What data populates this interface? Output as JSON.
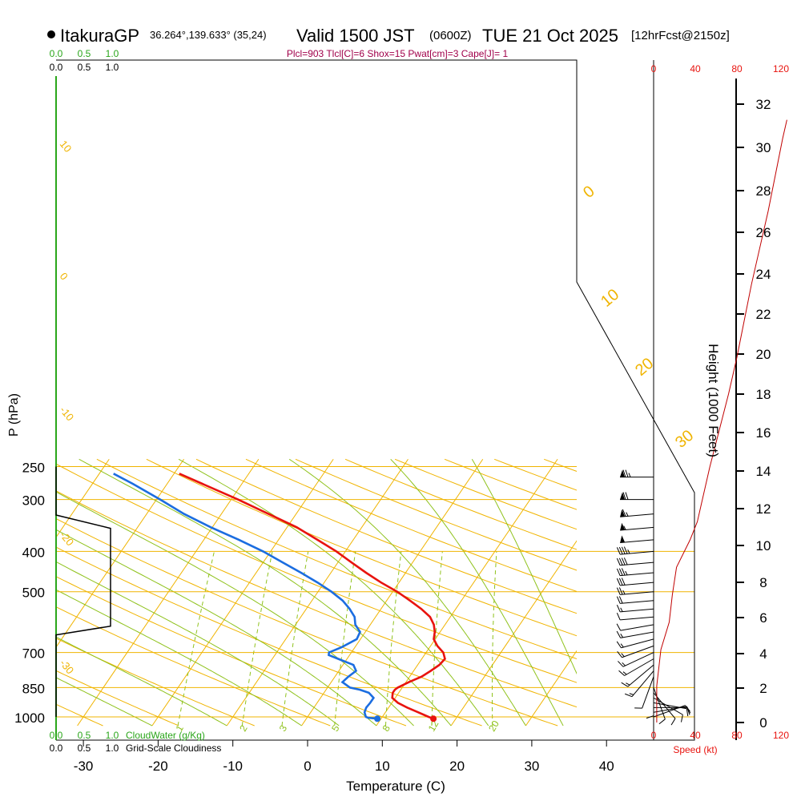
{
  "header": {
    "station": "ItakuraGP",
    "coords": "36.264°,139.633° (35,24)",
    "valid": "Valid 1500 JST",
    "zulu": "(0600Z)",
    "date": "TUE 21 Oct 2025",
    "forecast": "[12hrFcst@2150z]",
    "indices": "Plcl=903 Tlcl[C]=6 Shox=15 Pwat[cm]=3 Cape[J]= 1"
  },
  "colors": {
    "temp": "#e8130e",
    "dewpoint": "#1b6de0",
    "isotherm": "#f0b400",
    "dry_adiabat": "#f0b400",
    "moist_adiabat": "#8fc21c",
    "mixing": "#8fc21c",
    "cloud": "#2aa61a",
    "speed": "#c00000",
    "title_indices": "#a0004a"
  },
  "chart_data": {
    "type": "skewt",
    "title": "Valid 1500 JST (0600Z) TUE 21 Oct 2025",
    "xlabel": "Temperature (C)",
    "ylabel": "P (hPa)",
    "right_label": "Height (1000 Feet)",
    "x_ticks": [
      -30,
      -20,
      -10,
      0,
      10,
      20,
      30,
      40
    ],
    "x_tick_labels": [
      "-30",
      "-20",
      "-10",
      "0",
      "10",
      "20",
      "30",
      "40"
    ],
    "p_levels": [
      1000,
      850,
      700,
      500,
      400,
      300,
      250
    ],
    "p_labels": [
      "1000",
      "850",
      "700",
      "500",
      "400",
      "300",
      "250"
    ],
    "height_ticks": [
      0,
      2,
      4,
      6,
      8,
      10,
      12,
      14,
      16,
      18,
      20,
      22,
      24,
      26,
      28,
      30,
      32
    ],
    "height_labels": [
      "0",
      "2",
      "4",
      "6",
      "8",
      "10",
      "12",
      "14",
      "16",
      "18",
      "20",
      "22",
      "24",
      "26",
      "28",
      "30",
      "32"
    ],
    "speed_ticks": [
      0,
      40,
      80,
      120
    ],
    "speed_labels": [
      "0",
      "40",
      "80",
      "120"
    ],
    "speed_label": "Speed (kt)",
    "cloud_ticks": [
      "0.0",
      "0.5",
      "1.0"
    ],
    "cloud_legend": "CloudWater (g/Kg)",
    "cloudiness_ticks": [
      "0.0",
      "0.5",
      "1.0"
    ],
    "cloudiness_legend": "Grid-Scale Cloudiness",
    "isotherm_labels": [
      "10",
      "0",
      "-10",
      "-20",
      "-30"
    ],
    "dry_labels": [
      "0",
      "10",
      "20",
      "30"
    ],
    "mixing_labels": [
      "1",
      "2",
      "3",
      "5",
      "8",
      "12",
      "20"
    ],
    "temperature": [
      {
        "p": 1010,
        "t": 17.0
      },
      {
        "p": 1000,
        "t": 16.2
      },
      {
        "p": 975,
        "t": 14.4
      },
      {
        "p": 950,
        "t": 12.5
      },
      {
        "p": 925,
        "t": 10.8
      },
      {
        "p": 900,
        "t": 9.6
      },
      {
        "p": 875,
        "t": 9.2
      },
      {
        "p": 860,
        "t": 9.2
      },
      {
        "p": 850,
        "t": 9.4
      },
      {
        "p": 825,
        "t": 10.4
      },
      {
        "p": 800,
        "t": 11.6
      },
      {
        "p": 775,
        "t": 12.3
      },
      {
        "p": 750,
        "t": 12.9
      },
      {
        "p": 725,
        "t": 13.1
      },
      {
        "p": 700,
        "t": 12.3
      },
      {
        "p": 675,
        "t": 10.9
      },
      {
        "p": 650,
        "t": 9.8
      },
      {
        "p": 625,
        "t": 9.3
      },
      {
        "p": 600,
        "t": 8.5
      },
      {
        "p": 575,
        "t": 7.3
      },
      {
        "p": 550,
        "t": 5.4
      },
      {
        "p": 525,
        "t": 3.1
      },
      {
        "p": 500,
        "t": 0.6
      },
      {
        "p": 475,
        "t": -2.4
      },
      {
        "p": 450,
        "t": -5.3
      },
      {
        "p": 425,
        "t": -8.2
      },
      {
        "p": 400,
        "t": -11.2
      },
      {
        "p": 375,
        "t": -14.8
      },
      {
        "p": 350,
        "t": -18.7
      },
      {
        "p": 325,
        "t": -23.7
      },
      {
        "p": 300,
        "t": -29.1
      },
      {
        "p": 275,
        "t": -35.3
      },
      {
        "p": 260,
        "t": -39.3
      }
    ],
    "dewpoint": [
      {
        "p": 1010,
        "t": 9.5
      },
      {
        "p": 1005,
        "t": 8.2
      },
      {
        "p": 1000,
        "t": 7.8
      },
      {
        "p": 975,
        "t": 7.2
      },
      {
        "p": 950,
        "t": 7.0
      },
      {
        "p": 925,
        "t": 7.1
      },
      {
        "p": 900,
        "t": 7.1
      },
      {
        "p": 875,
        "t": 6.0
      },
      {
        "p": 860,
        "t": 4.5
      },
      {
        "p": 850,
        "t": 3.0
      },
      {
        "p": 825,
        "t": 1.5
      },
      {
        "p": 800,
        "t": 1.8
      },
      {
        "p": 775,
        "t": 2.3
      },
      {
        "p": 750,
        "t": 1.4
      },
      {
        "p": 725,
        "t": -1.2
      },
      {
        "p": 710,
        "t": -2.8
      },
      {
        "p": 700,
        "t": -3.0
      },
      {
        "p": 680,
        "t": -1.8
      },
      {
        "p": 650,
        "t": -0.5
      },
      {
        "p": 625,
        "t": -0.7
      },
      {
        "p": 600,
        "t": -2.0
      },
      {
        "p": 575,
        "t": -2.8
      },
      {
        "p": 550,
        "t": -4.2
      },
      {
        "p": 525,
        "t": -5.9
      },
      {
        "p": 500,
        "t": -8.2
      },
      {
        "p": 475,
        "t": -10.9
      },
      {
        "p": 450,
        "t": -14.0
      },
      {
        "p": 425,
        "t": -17.4
      },
      {
        "p": 400,
        "t": -21.0
      },
      {
        "p": 375,
        "t": -25.3
      },
      {
        "p": 350,
        "t": -30.2
      },
      {
        "p": 325,
        "t": -35.0
      },
      {
        "p": 300,
        "t": -39.5
      },
      {
        "p": 275,
        "t": -44.6
      },
      {
        "p": 260,
        "t": -48.1
      }
    ],
    "surface_temp": 17.0,
    "surface_dewpoint": 9.5,
    "cloudiness": [
      {
        "p": 250,
        "f": 0.0
      },
      {
        "p": 327,
        "f": 0.0
      },
      {
        "p": 352,
        "f": 1.0
      },
      {
        "p": 605,
        "f": 1.0
      },
      {
        "p": 635,
        "f": 0.0
      },
      {
        "p": 1000,
        "f": 0.0
      }
    ],
    "wind": [
      {
        "p": 265,
        "spd": 75,
        "dir": 270
      },
      {
        "p": 300,
        "spd": 70,
        "dir": 270
      },
      {
        "p": 325,
        "spd": 65,
        "dir": 265
      },
      {
        "p": 350,
        "spd": 55,
        "dir": 265
      },
      {
        "p": 375,
        "spd": 50,
        "dir": 265
      },
      {
        "p": 400,
        "spd": 45,
        "dir": 265
      },
      {
        "p": 425,
        "spd": 40,
        "dir": 265
      },
      {
        "p": 450,
        "spd": 35,
        "dir": 265
      },
      {
        "p": 475,
        "spd": 30,
        "dir": 265
      },
      {
        "p": 500,
        "spd": 25,
        "dir": 265
      },
      {
        "p": 525,
        "spd": 20,
        "dir": 265
      },
      {
        "p": 550,
        "spd": 15,
        "dir": 265
      },
      {
        "p": 575,
        "spd": 10,
        "dir": 265
      },
      {
        "p": 600,
        "spd": 10,
        "dir": 260
      },
      {
        "p": 625,
        "spd": 15,
        "dir": 260
      },
      {
        "p": 650,
        "spd": 15,
        "dir": 255
      },
      {
        "p": 675,
        "spd": 15,
        "dir": 250
      },
      {
        "p": 700,
        "spd": 15,
        "dir": 245
      },
      {
        "p": 725,
        "spd": 15,
        "dir": 240
      },
      {
        "p": 750,
        "spd": 15,
        "dir": 230
      },
      {
        "p": 775,
        "spd": 15,
        "dir": 220
      },
      {
        "p": 800,
        "spd": 10,
        "dir": 200
      },
      {
        "p": 825,
        "spd": 10,
        "dir": 180
      },
      {
        "p": 850,
        "spd": 10,
        "dir": 160
      },
      {
        "p": 875,
        "spd": 10,
        "dir": 140
      },
      {
        "p": 900,
        "spd": 10,
        "dir": 120
      },
      {
        "p": 925,
        "spd": 10,
        "dir": 100
      },
      {
        "p": 950,
        "spd": 10,
        "dir": 90
      },
      {
        "p": 975,
        "spd": 10,
        "dir": 80
      },
      {
        "p": 1000,
        "spd": 10,
        "dir": 70
      }
    ],
    "speed_profile": [
      {
        "h": 0,
        "s": 3
      },
      {
        "h": 2,
        "s": 3
      },
      {
        "h": 4,
        "s": 7
      },
      {
        "h": 5.5,
        "s": 15
      },
      {
        "h": 7,
        "s": 18
      },
      {
        "h": 8.5,
        "s": 22
      },
      {
        "h": 10,
        "s": 35
      },
      {
        "h": 11,
        "s": 42
      },
      {
        "h": 12,
        "s": 46
      },
      {
        "h": 14,
        "s": 54
      },
      {
        "h": 16,
        "s": 63
      },
      {
        "h": 18,
        "s": 72
      },
      {
        "h": 20,
        "s": 80
      },
      {
        "h": 22,
        "s": 87
      },
      {
        "h": 24,
        "s": 94
      },
      {
        "h": 26,
        "s": 102
      },
      {
        "h": 28,
        "s": 110
      },
      {
        "h": 30,
        "s": 117
      },
      {
        "h": 32,
        "s": 124
      },
      {
        "h": 33,
        "s": 128
      }
    ]
  }
}
